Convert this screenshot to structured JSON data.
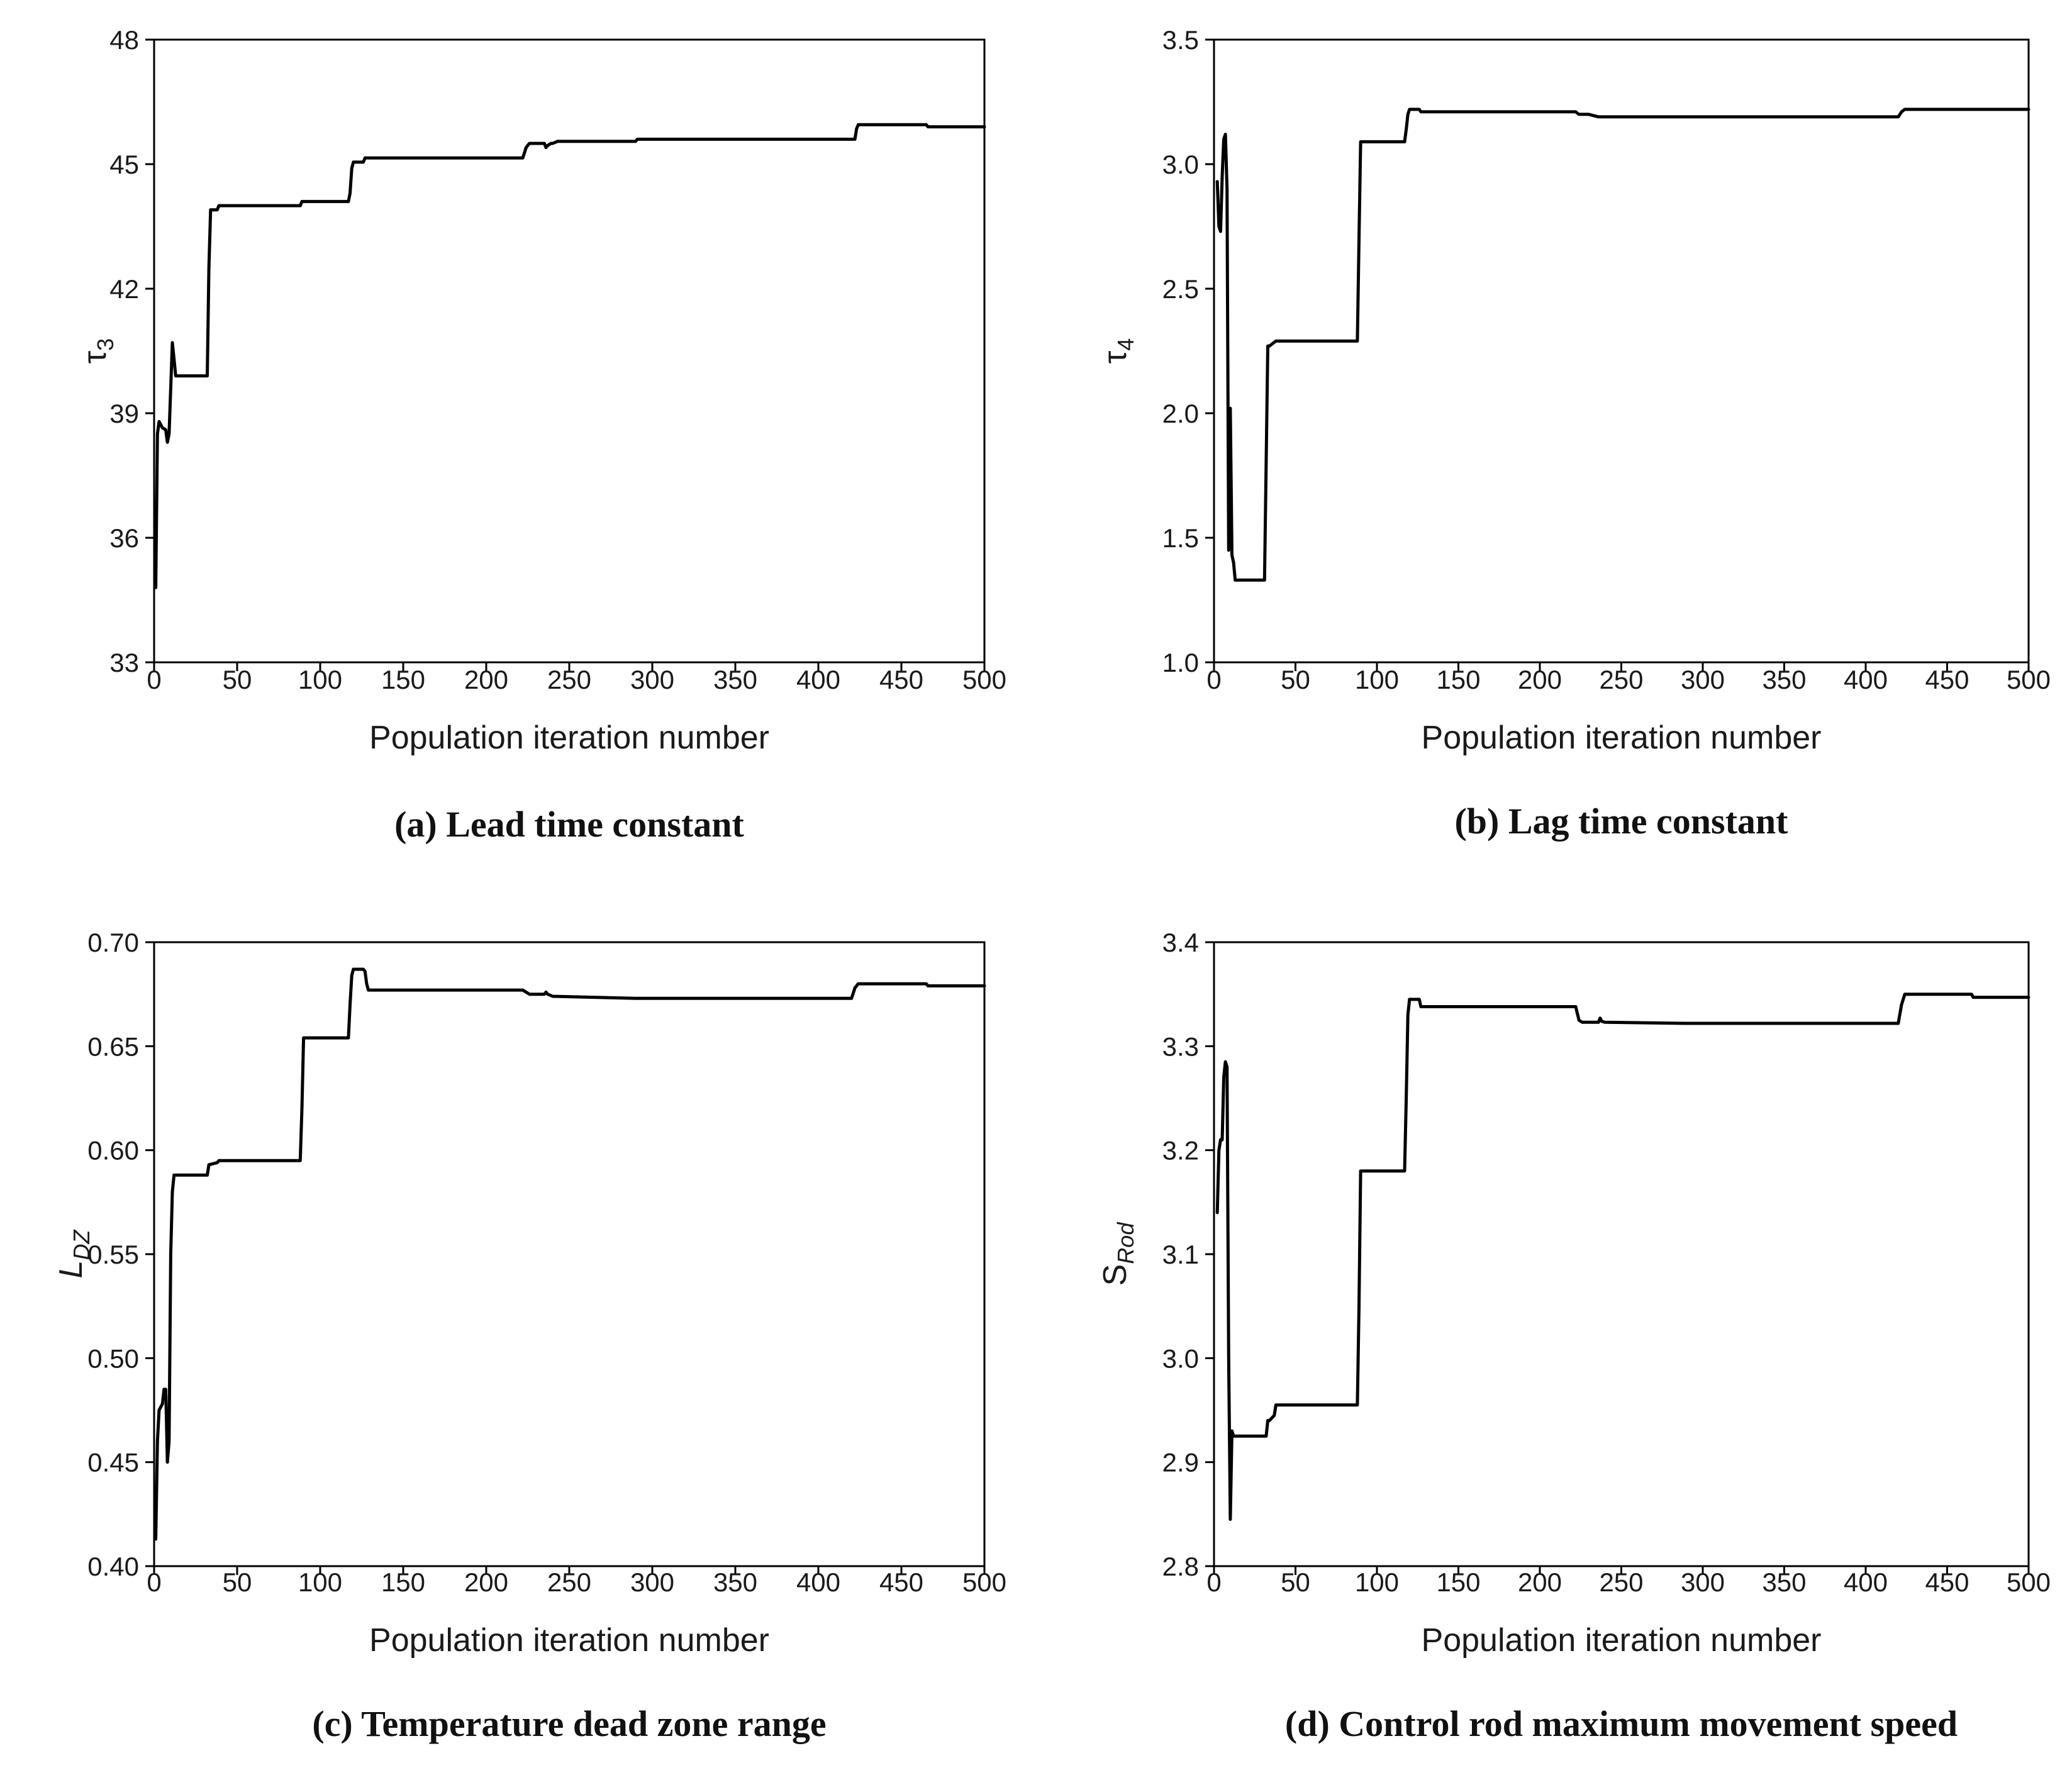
{
  "chart_data": [
    {
      "type": "line",
      "caption": "(a) Lead time constant",
      "xlabel": "Population iteration number",
      "ylabel": {
        "symbol": "τ",
        "sub": "3",
        "sub_italic": false
      },
      "xlim": [
        0,
        500
      ],
      "ylim": [
        33,
        48
      ],
      "xticks": [
        0,
        50,
        100,
        150,
        200,
        250,
        300,
        350,
        400,
        450,
        500
      ],
      "yticks": [
        33,
        36,
        39,
        42,
        45,
        48
      ],
      "x": [
        1,
        2,
        3,
        5,
        7,
        8,
        9,
        10,
        11,
        12,
        13,
        14,
        32,
        33,
        34,
        38,
        39,
        88,
        89,
        117,
        118,
        119,
        120,
        126,
        127,
        222,
        224,
        226,
        235,
        236,
        237,
        239,
        240,
        243,
        290,
        291,
        422,
        423,
        424,
        430,
        465,
        466,
        500
      ],
      "y": [
        34.8,
        38.5,
        38.8,
        38.65,
        38.6,
        38.3,
        38.5,
        39.6,
        40.7,
        40.3,
        39.9,
        39.9,
        39.9,
        42.5,
        43.9,
        43.9,
        44.0,
        44.0,
        44.1,
        44.1,
        44.3,
        44.9,
        45.05,
        45.05,
        45.15,
        45.15,
        45.4,
        45.5,
        45.5,
        45.4,
        45.45,
        45.5,
        45.5,
        45.55,
        45.55,
        45.6,
        45.6,
        45.85,
        45.95,
        45.95,
        45.95,
        45.9,
        45.9
      ]
    },
    {
      "type": "line",
      "caption": "(b) Lag time constant",
      "xlabel": "Population iteration number",
      "ylabel": {
        "symbol": "τ",
        "sub": "4",
        "sub_italic": false
      },
      "xlim": [
        0,
        500
      ],
      "ylim": [
        1.0,
        3.5
      ],
      "xticks": [
        0,
        50,
        100,
        150,
        200,
        250,
        300,
        350,
        400,
        450,
        500
      ],
      "yticks": [
        1.0,
        1.5,
        2.0,
        2.5,
        3.0,
        3.5
      ],
      "x": [
        2,
        3,
        4,
        5,
        6,
        7,
        8,
        9,
        10,
        11,
        12,
        13,
        14,
        15,
        31,
        32,
        33,
        34,
        38,
        88,
        89,
        90,
        117,
        118,
        119,
        120,
        126,
        127,
        222,
        224,
        230,
        236,
        240,
        290,
        420,
        422,
        424,
        465,
        500
      ],
      "y": [
        2.93,
        2.75,
        2.73,
        2.95,
        3.1,
        3.12,
        2.9,
        1.45,
        2.02,
        1.43,
        1.4,
        1.33,
        1.33,
        1.33,
        1.33,
        1.8,
        2.27,
        2.27,
        2.29,
        2.29,
        2.7,
        3.09,
        3.09,
        3.14,
        3.2,
        3.22,
        3.22,
        3.21,
        3.21,
        3.2,
        3.2,
        3.19,
        3.19,
        3.19,
        3.19,
        3.21,
        3.22,
        3.22,
        3.22
      ]
    },
    {
      "type": "line",
      "caption": "(c) Temperature dead zone range",
      "xlabel": "Population iteration number",
      "ylabel": {
        "symbol": "L",
        "sub": "DZ",
        "sub_italic": true
      },
      "xlim": [
        0,
        500
      ],
      "ylim": [
        0.4,
        0.7
      ],
      "xticks": [
        0,
        50,
        100,
        150,
        200,
        250,
        300,
        350,
        400,
        450,
        500
      ],
      "yticks": [
        0.4,
        0.45,
        0.5,
        0.55,
        0.6,
        0.65,
        0.7
      ],
      "x": [
        1,
        2,
        3,
        5,
        6,
        7,
        8,
        9,
        10,
        11,
        12,
        13,
        14,
        32,
        33,
        38,
        39,
        88,
        89,
        90,
        117,
        118,
        119,
        120,
        126,
        127,
        128,
        129,
        222,
        224,
        226,
        235,
        236,
        237,
        240,
        290,
        420,
        422,
        424,
        465,
        466,
        500
      ],
      "y": [
        0.413,
        0.46,
        0.475,
        0.478,
        0.485,
        0.485,
        0.45,
        0.46,
        0.55,
        0.58,
        0.588,
        0.588,
        0.588,
        0.588,
        0.593,
        0.594,
        0.595,
        0.595,
        0.62,
        0.654,
        0.654,
        0.67,
        0.684,
        0.687,
        0.687,
        0.686,
        0.68,
        0.677,
        0.677,
        0.676,
        0.675,
        0.675,
        0.676,
        0.675,
        0.674,
        0.673,
        0.673,
        0.678,
        0.68,
        0.68,
        0.679,
        0.679
      ]
    },
    {
      "type": "line",
      "caption": "(d) Control rod maximum movement speed",
      "xlabel": "Population iteration number",
      "ylabel": {
        "symbol": "S",
        "sub": "Rod",
        "sub_italic": true
      },
      "xlim": [
        0,
        500
      ],
      "ylim": [
        2.8,
        3.4
      ],
      "xticks": [
        0,
        50,
        100,
        150,
        200,
        250,
        300,
        350,
        400,
        450,
        500
      ],
      "yticks": [
        2.8,
        2.9,
        3.0,
        3.1,
        3.2,
        3.3,
        3.4
      ],
      "x": [
        2,
        3,
        4,
        5,
        6,
        7,
        8,
        9,
        10,
        11,
        12,
        13,
        14,
        32,
        33,
        34,
        37,
        38,
        88,
        89,
        90,
        117,
        118,
        119,
        120,
        126,
        127,
        222,
        224,
        226,
        236,
        237,
        238,
        240,
        290,
        420,
        422,
        424,
        465,
        466,
        500
      ],
      "y": [
        3.14,
        3.2,
        3.21,
        3.21,
        3.27,
        3.285,
        3.28,
        3.0,
        2.845,
        2.93,
        2.925,
        2.925,
        2.925,
        2.925,
        2.94,
        2.94,
        2.945,
        2.955,
        2.955,
        3.05,
        3.18,
        3.18,
        3.25,
        3.33,
        3.345,
        3.345,
        3.338,
        3.338,
        3.325,
        3.323,
        3.323,
        3.327,
        3.324,
        3.323,
        3.322,
        3.322,
        3.34,
        3.35,
        3.35,
        3.347,
        3.347
      ]
    }
  ]
}
